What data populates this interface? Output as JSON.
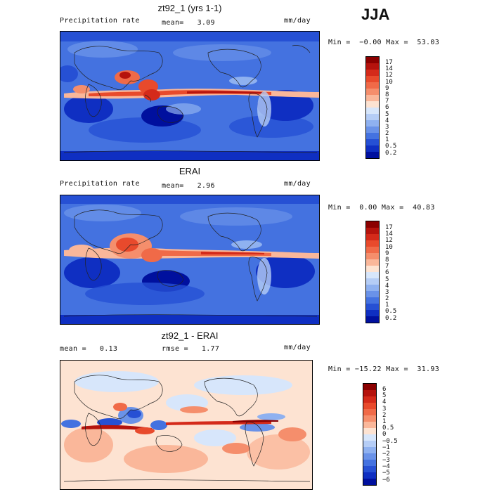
{
  "season": "JJA",
  "panels": [
    {
      "title": "zt92_1 (yrs 1-1)",
      "left_label": "Precipitation rate",
      "mean_label": "mean=   3.09",
      "units": "mm/day",
      "stats": "Min =  −0.00 Max =  53.03"
    },
    {
      "title": "ERAI",
      "left_label": "Precipitation rate",
      "mean_label": "mean=   2.96",
      "units": "mm/day",
      "stats": "Min =  0.00 Max =  40.83"
    },
    {
      "title": "zt92_1 - ERAI",
      "left_label": "mean =   0.13",
      "mean_label": "rmse =   1.77",
      "units": "mm/day",
      "stats": "Min = −15.22 Max =  31.93"
    }
  ],
  "colorbar_precip": {
    "labels": [
      "17",
      "14",
      "12",
      "10",
      "9",
      "8",
      "7",
      "6",
      "5",
      "4",
      "3",
      "2",
      "1",
      "0.5",
      "0.2"
    ],
    "colors": [
      "#8b0000",
      "#b5130d",
      "#d42a1a",
      "#e84a2c",
      "#f06a48",
      "#f58e6c",
      "#fab79a",
      "#fde3d2",
      "#d7e6fb",
      "#b5cdf6",
      "#8fb1f0",
      "#6a92e8",
      "#4472e0",
      "#2650d4",
      "#0f2fc2",
      "#00109e"
    ]
  },
  "colorbar_diff": {
    "labels": [
      "6",
      "5",
      "4",
      "3",
      "2",
      "1",
      "0.5",
      "0",
      "−0.5",
      "−1",
      "−2",
      "−3",
      "−4",
      "−5",
      "−6"
    ],
    "colors": [
      "#8b0000",
      "#b5130d",
      "#d42a1a",
      "#e84a2c",
      "#f06a48",
      "#f58e6c",
      "#fab79a",
      "#fde3d2",
      "#d7e6fb",
      "#b5cdf6",
      "#8fb1f0",
      "#6a92e8",
      "#4472e0",
      "#2650d4",
      "#0f2fc2",
      "#00109e"
    ]
  }
}
